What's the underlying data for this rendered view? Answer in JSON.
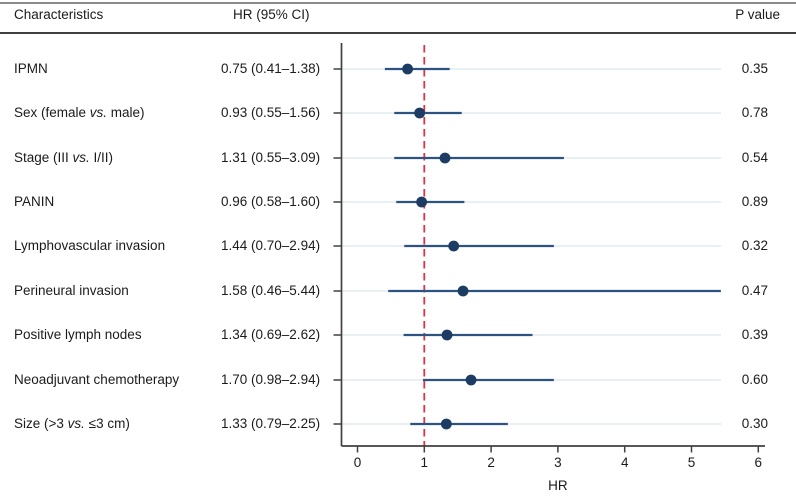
{
  "header": {
    "characteristics": "Characteristics",
    "hr_ci": "HR (95% CI)",
    "p_value": "P value"
  },
  "rows": [
    {
      "label": "IPMN",
      "hr_ci": "0.75 (0.41–1.38)",
      "p": "0.35"
    },
    {
      "label": "Sex (female vs. male)",
      "hr_ci": "0.93 (0.55–1.56)",
      "p": "0.78"
    },
    {
      "label": "Stage (III vs. I/II)",
      "hr_ci": "1.31 (0.55–3.09)",
      "p": "0.54"
    },
    {
      "label": "PANIN",
      "hr_ci": "0.96 (0.58–1.60)",
      "p": "0.89"
    },
    {
      "label": "Lymphovascular invasion",
      "hr_ci": "1.44 (0.70–2.94)",
      "p": "0.32"
    },
    {
      "label": "Perineural invasion",
      "hr_ci": "1.58 (0.46–5.44)",
      "p": "0.47"
    },
    {
      "label": "Positive lymph nodes",
      "hr_ci": "1.34 (0.69–2.62)",
      "p": "0.39"
    },
    {
      "label": "Neoadjuvant chemotherapy",
      "hr_ci": "1.70 (0.98–2.94)",
      "p": "0.60"
    },
    {
      "label": "Size (>3 vs. ≤3 cm)",
      "hr_ci": "1.33 (0.79–2.25)",
      "p": "0.30"
    }
  ],
  "chart_data": {
    "type": "scatter",
    "subtype": "forest-plot",
    "title": "",
    "categories": [
      "IPMN",
      "Sex (female vs. male)",
      "Stage (III vs. I/II)",
      "PANIN",
      "Lymphovascular invasion",
      "Perineural invasion",
      "Positive lymph nodes",
      "Neoadjuvant chemotherapy",
      "Size (>3 vs. ≤3 cm)"
    ],
    "series": [
      {
        "name": "HR",
        "values": [
          0.75,
          0.93,
          1.31,
          0.96,
          1.44,
          1.58,
          1.34,
          1.7,
          1.33
        ]
      },
      {
        "name": "CI_lower",
        "values": [
          0.41,
          0.55,
          0.55,
          0.58,
          0.7,
          0.46,
          0.69,
          0.98,
          0.79
        ]
      },
      {
        "name": "CI_upper",
        "values": [
          1.38,
          1.56,
          3.09,
          1.6,
          2.94,
          5.44,
          2.62,
          2.94,
          2.25
        ]
      }
    ],
    "p_values": [
      0.35,
      0.78,
      0.54,
      0.89,
      0.32,
      0.47,
      0.39,
      0.6,
      0.3
    ],
    "xlabel": "HR",
    "xlim": [
      0,
      6
    ],
    "x_ticks": [
      0,
      1,
      2,
      3,
      4,
      5,
      6
    ],
    "reference_line_x": 1,
    "grid": "horizontal row leader lines",
    "legend": "none"
  },
  "colors": {
    "marker": "#1c3c63",
    "ci_line": "#2d5380",
    "reference_line": "#d9344a",
    "gridline": "#e0ebf1",
    "axis": "#404040",
    "text": "#1b1b1b"
  }
}
